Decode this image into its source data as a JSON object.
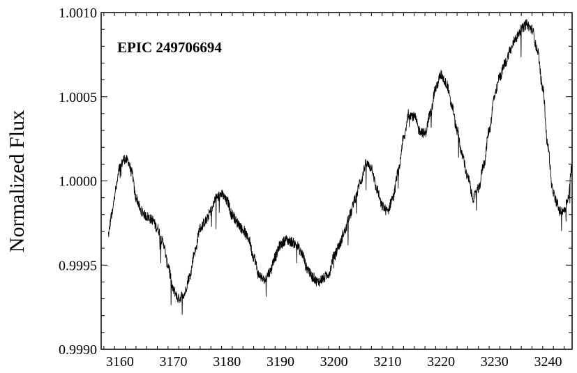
{
  "chart_data": {
    "type": "line",
    "title": "",
    "annotation": "EPIC 249706694",
    "xlabel": "",
    "ylabel": "Normalized Flux",
    "xlim": [
      3156.5,
      3244.5
    ],
    "ylim": [
      0.999,
      1.001
    ],
    "xticks": [
      3160,
      3170,
      3180,
      3190,
      3200,
      3210,
      3220,
      3230,
      3240
    ],
    "xtick_labels": [
      "3160",
      "3170",
      "3180",
      "3190",
      "3200",
      "3210",
      "3220",
      "3230",
      "3240"
    ],
    "yticks": [
      0.999,
      0.9995,
      1.0,
      1.0005,
      1.001
    ],
    "ytick_labels": [
      "0.9990",
      "0.9995",
      "1.0000",
      "1.0005",
      "1.0010"
    ],
    "grid": false,
    "legend": "none",
    "line_color": "#000000",
    "series": [
      {
        "x": [
          3157.8,
          3158.5,
          3159.2,
          3160.0,
          3160.8,
          3161.5,
          3162.2,
          3163.0,
          3164.0,
          3165.0,
          3166.0,
          3167.0,
          3168.0,
          3169.0,
          3170.0,
          3171.0,
          3172.0,
          3173.0,
          3174.0,
          3175.0,
          3176.0,
          3177.0,
          3178.0,
          3179.0,
          3180.0,
          3181.0,
          3182.0,
          3183.0,
          3184.0,
          3185.0,
          3186.0,
          3187.0,
          3188.0,
          3189.0,
          3190.0,
          3191.0,
          3192.0,
          3193.0,
          3194.0,
          3195.0,
          3196.0,
          3197.0,
          3198.0,
          3199.0,
          3200.0,
          3201.0,
          3202.0,
          3203.0,
          3204.0,
          3205.0,
          3206.0,
          3207.0,
          3208.0,
          3209.0,
          3210.0,
          3211.0,
          3212.0,
          3213.0,
          3214.0,
          3215.0,
          3216.0,
          3217.0,
          3218.0,
          3219.0,
          3220.0,
          3221.0,
          3222.0,
          3223.0,
          3224.0,
          3225.0,
          3226.0,
          3227.0,
          3228.0,
          3229.0,
          3230.0,
          3231.0,
          3232.0,
          3233.0,
          3234.0,
          3235.0,
          3236.0,
          3237.0,
          3238.0,
          3239.0,
          3240.0,
          3240.8,
          3241.5,
          3242.2,
          3243.0,
          3243.8,
          3244.4
        ],
        "y": [
          0.99968,
          0.9998,
          0.99995,
          1.00008,
          1.00013,
          1.00012,
          1.00005,
          0.9999,
          0.99982,
          0.99979,
          0.99977,
          0.99972,
          0.99964,
          0.9995,
          0.99935,
          0.9993,
          0.99933,
          0.99943,
          0.99958,
          0.99972,
          0.99976,
          0.99982,
          0.9999,
          0.99992,
          0.99988,
          0.9998,
          0.99975,
          0.99971,
          0.99966,
          0.99955,
          0.99944,
          0.99941,
          0.99946,
          0.99955,
          0.99962,
          0.99965,
          0.99964,
          0.99962,
          0.99957,
          0.99948,
          0.99943,
          0.9994,
          0.99942,
          0.99945,
          0.99955,
          0.99962,
          0.9997,
          0.9998,
          0.9999,
          1.0,
          1.0001,
          1.00008,
          0.99995,
          0.99985,
          0.99982,
          0.9999,
          1.00005,
          1.00025,
          1.0004,
          1.00038,
          1.0003,
          1.00028,
          1.0004,
          1.00055,
          1.00063,
          1.00058,
          1.00045,
          1.0003,
          1.00015,
          1.00002,
          0.9999,
          0.99995,
          1.0001,
          1.0003,
          1.0005,
          1.00062,
          1.0007,
          1.00078,
          1.00085,
          1.0009,
          1.00093,
          1.0009,
          1.00078,
          1.00055,
          1.0002,
          0.99995,
          0.99988,
          0.99982,
          0.99983,
          0.9999,
          1.00008
        ]
      }
    ]
  }
}
